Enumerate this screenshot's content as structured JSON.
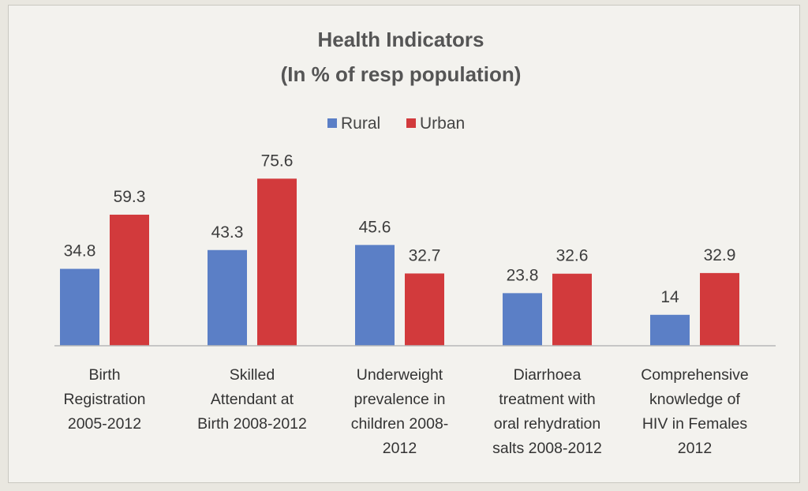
{
  "chart_data": {
    "type": "bar",
    "title": "Health Indicators",
    "subtitle": "(In % of resp population)",
    "categories": [
      [
        "Birth",
        "Registration",
        "2005-2012"
      ],
      [
        "Skilled",
        "Attendant at",
        "Birth 2008-2012"
      ],
      [
        "Underweight",
        "prevalence in",
        "children  2008-",
        "2012"
      ],
      [
        "Diarrhoea",
        "treatment with",
        "oral rehydration",
        "salts 2008-2012"
      ],
      [
        "Comprehensive",
        "knowledge of",
        "HIV in Females",
        "2012"
      ]
    ],
    "series": [
      {
        "name": "Rural",
        "color": "#5b7fc6",
        "values": [
          34.8,
          43.3,
          45.6,
          23.8,
          14
        ]
      },
      {
        "name": "Urban",
        "color": "#d23a3c",
        "values": [
          59.3,
          75.6,
          32.7,
          32.6,
          32.9
        ]
      }
    ],
    "ylim": [
      0,
      80
    ],
    "legend": "top-center",
    "grid": false
  }
}
